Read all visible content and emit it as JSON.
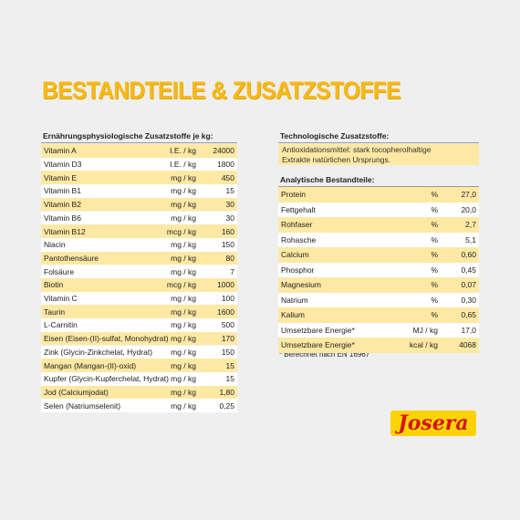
{
  "title": "BESTANDTEILE & ZUSATZSTOFFE",
  "nutritional_additives": {
    "heading": "Ernährungsphysiologische Zusatzstoffe je kg:",
    "rows": [
      [
        "Vitamin A",
        "I.E. / kg",
        "24000"
      ],
      [
        "Vitamin D3",
        "I.E. / kg",
        "1800"
      ],
      [
        "Vitamin E",
        "mg / kg",
        "450"
      ],
      [
        "Vitamin B1",
        "mg / kg",
        "15"
      ],
      [
        "Vitamin B2",
        "mg / kg",
        "30"
      ],
      [
        "Vitamin B6",
        "mg / kg",
        "30"
      ],
      [
        "Vitamin B12",
        "mcg / kg",
        "160"
      ],
      [
        "Niacin",
        "mg / kg",
        "150"
      ],
      [
        "Pantothensäure",
        "mg / kg",
        "80"
      ],
      [
        "Folsäure",
        "mg / kg",
        "7"
      ],
      [
        "Biotin",
        "mcg / kg",
        "1000"
      ],
      [
        "Vitamin C",
        "mg / kg",
        "100"
      ],
      [
        "Taurin",
        "mg / kg",
        "1600"
      ],
      [
        "L-Carnitin",
        "mg / kg",
        "500"
      ],
      [
        "Eisen (Eisen-(II)-sulfat, Monohydrat)",
        "mg / kg",
        "170"
      ],
      [
        "Zink (Glycin-Zinkchelat, Hydrat)",
        "mg / kg",
        "150"
      ],
      [
        "Mangan (Mangan-(II)-oxid)",
        "mg / kg",
        "15"
      ],
      [
        "Kupfer (Glycin-Kupferchelat, Hydrat)",
        "mg / kg",
        "15"
      ],
      [
        "Jod (Calciumjodat)",
        "mg / kg",
        "1,80"
      ],
      [
        "Selen (Natriumselenit)",
        "mg / kg",
        "0,25"
      ]
    ]
  },
  "technological_additives": {
    "heading": "Technologische Zusatzstoffe:",
    "text": [
      "Antioxidationsmittel: stark tocopherolhaltige",
      "Extrakte natürlichen Ursprungs."
    ]
  },
  "analytical_constituents": {
    "heading": "Analytische Bestandteile:",
    "rows": [
      [
        "Protein",
        "%",
        "27,0"
      ],
      [
        "Fettgehalt",
        "%",
        "20,0"
      ],
      [
        "Rohfaser",
        "%",
        "2,7"
      ],
      [
        "Rohasche",
        "%",
        "5,1"
      ],
      [
        "Calcium",
        "%",
        "0,60"
      ],
      [
        "Phosphor",
        "%",
        "0,45"
      ],
      [
        "Magnesium",
        "%",
        "0,07"
      ],
      [
        "Natrium",
        "%",
        "0,30"
      ],
      [
        "Kalium",
        "%",
        "0,65"
      ],
      [
        "Umsetzbare Energie*",
        "MJ / kg",
        "17,0"
      ],
      [
        "Umsetzbare Energie*",
        "kcal / kg",
        "4068"
      ]
    ]
  },
  "footnote": "* Berechnet nach EN 16967",
  "logo": "Josera"
}
